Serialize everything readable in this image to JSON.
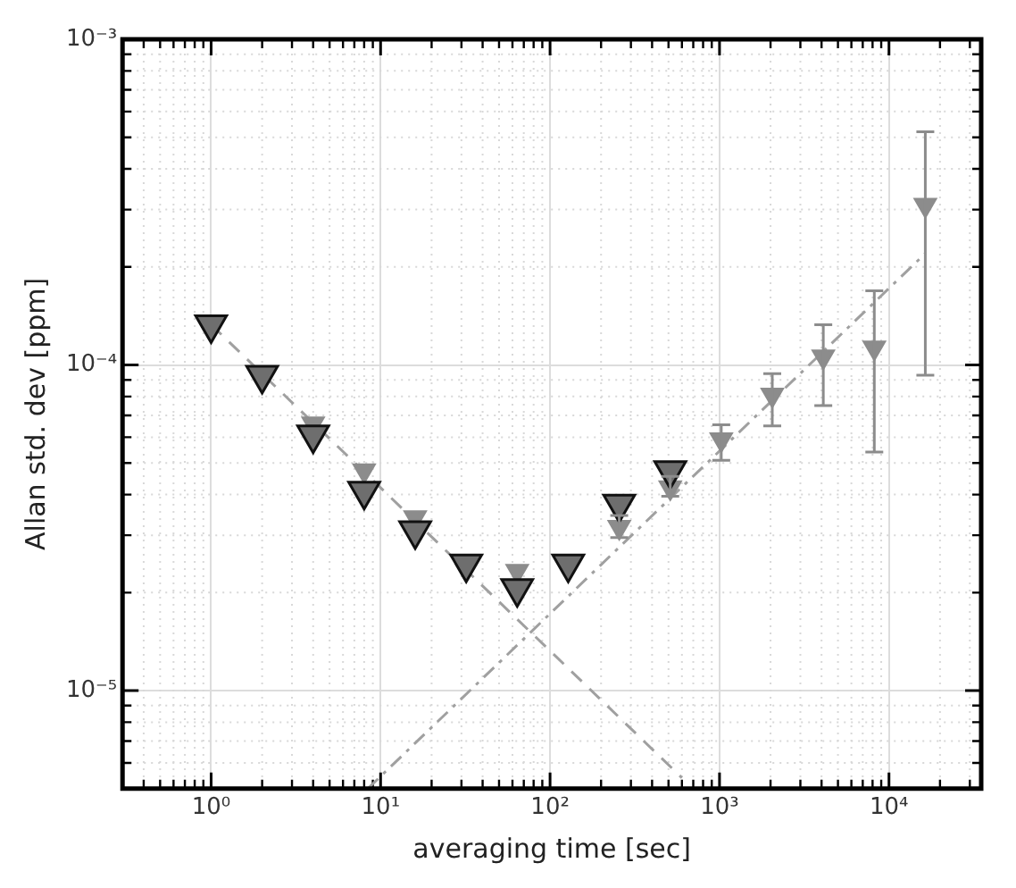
{
  "chart_data": {
    "type": "scatter",
    "xlabel": "averaging time [sec]",
    "ylabel": "Allan std. dev [ppm]",
    "log": "xy",
    "grid": true,
    "legend": false,
    "xlim": [
      0.3,
      35000
    ],
    "xticks": [
      {
        "value": 1,
        "label": "10⁰"
      },
      {
        "value": 10,
        "label": "10¹"
      },
      {
        "value": 100,
        "label": "10²"
      },
      {
        "value": 1000,
        "label": "10³"
      },
      {
        "value": 10000,
        "label": "10⁴"
      }
    ],
    "ylim": [
      5e-06,
      0.001
    ],
    "yticks": [
      {
        "value": 1e-05,
        "label": "10⁻⁵"
      },
      {
        "value": 0.0001,
        "label": "10⁻⁴"
      },
      {
        "value": 0.001,
        "label": "10⁻³"
      }
    ],
    "series": [
      {
        "type": "line",
        "color": "#a0a0a0",
        "line_style": "dashed",
        "marker": "none",
        "x": [
          1,
          600
        ],
        "values": [
          0.000133,
          5.4e-06
        ]
      },
      {
        "type": "line",
        "color": "#a0a0a0",
        "line_style": "dashdot",
        "marker": "none",
        "x": [
          8.4,
          16384
        ],
        "values": [
          5e-06,
          0.00022
        ]
      },
      {
        "color": "#8c8c8c",
        "marker": "triangle",
        "x": [
          4,
          8,
          16,
          64,
          256,
          512,
          1024,
          2048,
          4096,
          8192,
          16384
        ],
        "values": [
          6.6e-05,
          4.74e-05,
          3.4e-05,
          2.33e-05,
          3.18e-05,
          4.2e-05,
          5.9e-05,
          8.1e-05,
          0.000106,
          0.000113,
          0.00031
        ],
        "errors": [
          null,
          null,
          null,
          null,
          [
            2.95e-05,
            3.45e-05
          ],
          [
            3.95e-05,
            4.55e-05
          ],
          [
            5.1e-05,
            6.55e-05
          ],
          [
            6.5e-05,
            9.4e-05
          ],
          [
            7.5e-05,
            0.000133
          ],
          [
            5.4e-05,
            0.000169
          ],
          [
            9.3e-05,
            0.00052
          ]
        ]
      },
      {
        "color": "#6e6e6e",
        "marker": "triangle",
        "x": [
          1,
          2,
          4,
          8,
          16,
          32,
          64,
          128,
          256,
          512
        ],
        "values": [
          0.000133,
          9.3e-05,
          6.1e-05,
          4.1e-05,
          3.1e-05,
          2.45e-05,
          2.06e-05,
          2.45e-05,
          3.74e-05,
          4.74e-05
        ]
      }
    ]
  }
}
